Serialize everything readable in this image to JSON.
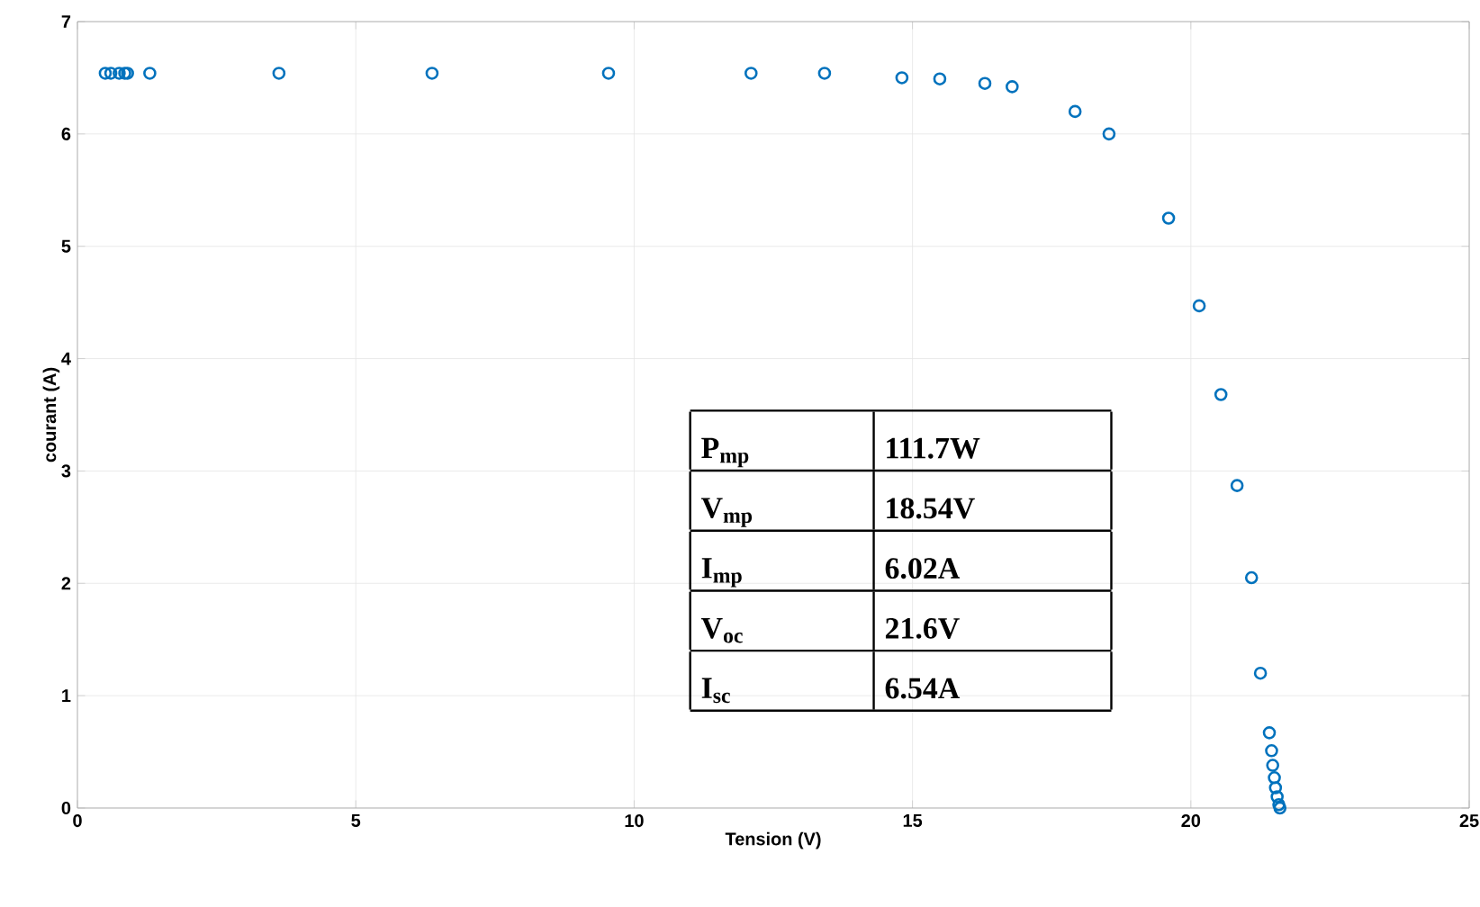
{
  "chart_data": {
    "type": "scatter",
    "xlabel": "Tension (V)",
    "ylabel": "courant (A)",
    "x": [
      0.5,
      0.6,
      0.75,
      0.85,
      0.9,
      1.3,
      3.62,
      6.37,
      9.54,
      12.1,
      13.42,
      14.81,
      15.49,
      16.3,
      16.79,
      17.92,
      18.53,
      19.6,
      20.15,
      20.54,
      20.83,
      21.09,
      21.25,
      21.41,
      21.45,
      21.47,
      21.5,
      21.52,
      21.55,
      21.58,
      21.6
    ],
    "series": [
      {
        "color": "#0072bd",
        "values": [
          6.54,
          6.54,
          6.54,
          6.54,
          6.54,
          6.54,
          6.54,
          6.54,
          6.54,
          6.54,
          6.54,
          6.5,
          6.49,
          6.45,
          6.42,
          6.2,
          6.0,
          5.25,
          4.47,
          3.68,
          2.87,
          2.05,
          1.2,
          0.67,
          0.51,
          0.38,
          0.27,
          0.18,
          0.1,
          0.03,
          0.0
        ]
      }
    ],
    "xlim": [
      0,
      25
    ],
    "ylim": [
      0,
      7
    ],
    "xticks": [
      0,
      5,
      10,
      15,
      20,
      25
    ],
    "yticks": [
      0,
      1,
      2,
      3,
      4,
      5,
      6,
      7
    ],
    "grid": true,
    "marker": "circle",
    "annotations": [
      "P$_{mp}$",
      "111.7W",
      "V$_{mp}$",
      "18.54V",
      "I$_{mp}$",
      "6.02A",
      "V$_{oc}$",
      "21.6V",
      "I$_{sc}$",
      "6.54A"
    ]
  }
}
